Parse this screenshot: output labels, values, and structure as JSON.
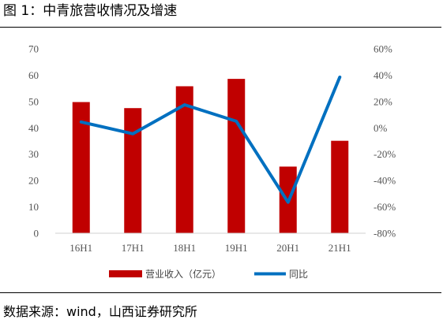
{
  "header": {
    "title": "图 1：中青旅营收情况及增速"
  },
  "footer": {
    "source": "数据来源：wind，山西证券研究所"
  },
  "chart_data": {
    "type": "bar",
    "categories": [
      "16H1",
      "17H1",
      "18H1",
      "19H1",
      "20H1",
      "21H1"
    ],
    "series": [
      {
        "name": "营业收入（亿元）",
        "type": "bar",
        "axis": "left",
        "color": "#c00000",
        "values": [
          49.8,
          47.5,
          55.8,
          58.6,
          25.3,
          35.1
        ]
      },
      {
        "name": "同比",
        "type": "line",
        "axis": "right",
        "color": "#0070c0",
        "values": [
          4.5,
          -4.5,
          17.5,
          5.0,
          -56.5,
          38.5
        ]
      }
    ],
    "y_left": {
      "lim": [
        0,
        70
      ],
      "ticks": [
        "0",
        "10",
        "20",
        "30",
        "40",
        "50",
        "60",
        "70"
      ]
    },
    "y_right": {
      "lim": [
        -80,
        60
      ],
      "ticks": [
        "-80%",
        "-60%",
        "-40%",
        "-20%",
        "0%",
        "20%",
        "40%",
        "60%"
      ]
    },
    "grid": false,
    "legend_position": "bottom"
  }
}
